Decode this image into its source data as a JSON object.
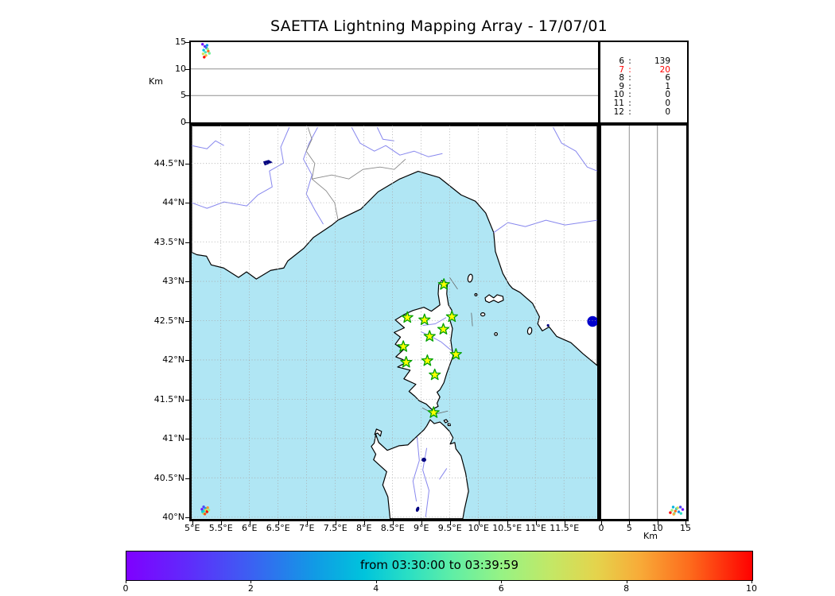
{
  "chart_data": {
    "type": "scatter",
    "title": "SAETTA Lightning Mapping Array - 17/07/01",
    "map": {
      "extent": {
        "lon_min": 4.99,
        "lon_max": 12.08,
        "lat_min": 39.98,
        "lat_max": 44.98
      },
      "lon_ticks": [
        5,
        5.5,
        6,
        6.5,
        7,
        7.5,
        8,
        8.5,
        9,
        9.5,
        10,
        10.5,
        11,
        11.5
      ],
      "lon_tick_labels": [
        "5°E",
        "5.5°E",
        "6°E",
        "6.5°E",
        "7°E",
        "7.5°E",
        "8°E",
        "8.5°E",
        "9°E",
        "9.5°E",
        "10°E",
        "10.5°E",
        "11°E",
        "11.5°E"
      ],
      "lat_ticks": [
        40,
        40.5,
        41,
        41.5,
        42,
        42.5,
        43,
        43.5,
        44,
        44.5
      ],
      "lat_tick_labels": [
        "40°N",
        "40.5°N",
        "41°N",
        "41.5°N",
        "42°N",
        "42.5°N",
        "43°N",
        "43.5°N",
        "44°N",
        "44.5°N"
      ]
    },
    "altitude_axis": {
      "label": "Km",
      "min": 0,
      "max": 15,
      "ticks": [
        0,
        5,
        10,
        15
      ],
      "tick_labels": [
        "0",
        "5",
        "10",
        "15"
      ],
      "gridlines": [
        5,
        10
      ]
    },
    "stations_lonlat": [
      [
        9.4,
        42.96
      ],
      [
        8.76,
        42.54
      ],
      [
        9.06,
        42.51
      ],
      [
        9.54,
        42.55
      ],
      [
        9.39,
        42.39
      ],
      [
        9.15,
        42.3
      ],
      [
        8.69,
        42.17
      ],
      [
        9.61,
        42.07
      ],
      [
        8.74,
        41.97
      ],
      [
        9.11,
        41.99
      ],
      [
        9.24,
        41.81
      ],
      [
        9.22,
        41.33
      ]
    ],
    "source_count_table": {
      "rows": [
        [
          "6",
          "139"
        ],
        [
          "7",
          "20"
        ],
        [
          "8",
          "6"
        ],
        [
          "9",
          "1"
        ],
        [
          "10",
          "0"
        ],
        [
          "11",
          "0"
        ],
        [
          "12",
          "0"
        ]
      ],
      "highlighted_row": "7"
    },
    "flash_sources": {
      "lon_lat_t": [
        [
          5.17,
          40.1,
          0.05
        ],
        [
          5.2,
          40.13,
          0.15
        ],
        [
          5.23,
          40.11,
          0.3
        ],
        [
          5.21,
          40.08,
          0.45
        ],
        [
          5.25,
          40.06,
          0.55
        ],
        [
          5.19,
          40.05,
          0.65
        ],
        [
          5.24,
          40.09,
          0.75
        ],
        [
          5.27,
          40.12,
          0.85
        ],
        [
          5.22,
          40.04,
          0.92
        ],
        [
          5.26,
          40.07,
          1.0
        ],
        [
          5.18,
          40.07,
          0.4
        ],
        [
          5.29,
          40.09,
          0.6
        ]
      ],
      "lon_alt_t": [
        [
          5.18,
          14.6,
          0.05
        ],
        [
          5.22,
          14.2,
          0.12
        ],
        [
          5.25,
          13.9,
          0.25
        ],
        [
          5.2,
          13.5,
          0.38
        ],
        [
          5.23,
          13.1,
          0.5
        ],
        [
          5.27,
          13.7,
          0.6
        ],
        [
          5.19,
          12.8,
          0.7
        ],
        [
          5.24,
          12.5,
          0.8
        ],
        [
          5.28,
          13.3,
          0.9
        ],
        [
          5.21,
          12.2,
          1.0
        ],
        [
          5.26,
          14.4,
          0.3
        ],
        [
          5.3,
          12.9,
          0.55
        ]
      ],
      "alt_lat_t": [
        [
          14.5,
          40.1,
          0.05
        ],
        [
          14.1,
          40.13,
          0.15
        ],
        [
          13.8,
          40.07,
          0.28
        ],
        [
          13.4,
          40.11,
          0.4
        ],
        [
          13.0,
          40.05,
          0.52
        ],
        [
          12.6,
          40.09,
          0.63
        ],
        [
          13.6,
          40.12,
          0.72
        ],
        [
          12.9,
          40.04,
          0.82
        ],
        [
          13.2,
          40.08,
          0.9
        ],
        [
          12.3,
          40.06,
          1.0
        ],
        [
          14.2,
          40.05,
          0.45
        ],
        [
          12.8,
          40.13,
          0.35
        ]
      ]
    },
    "colorbar": {
      "label": "from 03:30:00 to 03:39:59",
      "min": 0,
      "max": 10,
      "ticks": [
        0,
        2,
        4,
        6,
        8,
        10
      ],
      "tick_labels": [
        "0",
        "2",
        "4",
        "6",
        "8",
        "10"
      ],
      "rainbow_stops": [
        [
          0,
          "#7f00ff"
        ],
        [
          0.1,
          "#5f2cfb"
        ],
        [
          0.2,
          "#3b61f2"
        ],
        [
          0.3,
          "#119ae5"
        ],
        [
          0.38,
          "#00c4dc"
        ],
        [
          0.45,
          "#2adfc4"
        ],
        [
          0.52,
          "#5feea6"
        ],
        [
          0.6,
          "#97f384"
        ],
        [
          0.68,
          "#c4e765"
        ],
        [
          0.75,
          "#e4d44c"
        ],
        [
          0.82,
          "#f8ab38"
        ],
        [
          0.9,
          "#fd6b1c"
        ],
        [
          1,
          "#ff0000"
        ]
      ]
    }
  },
  "colors": {
    "background": "#ffffff",
    "sea": "#b0e6f4",
    "land": "#ffffff",
    "coastline": "#000000",
    "river": "#8888ee",
    "lake": "#000080",
    "round_lake": "#0000cc",
    "admin_border": "#888888",
    "grid": "#a8a8a8",
    "panel_grid": "#909090",
    "station_fill": "#ffff00",
    "station_edge": "#00a000",
    "highlight_text": "#ff0000"
  }
}
